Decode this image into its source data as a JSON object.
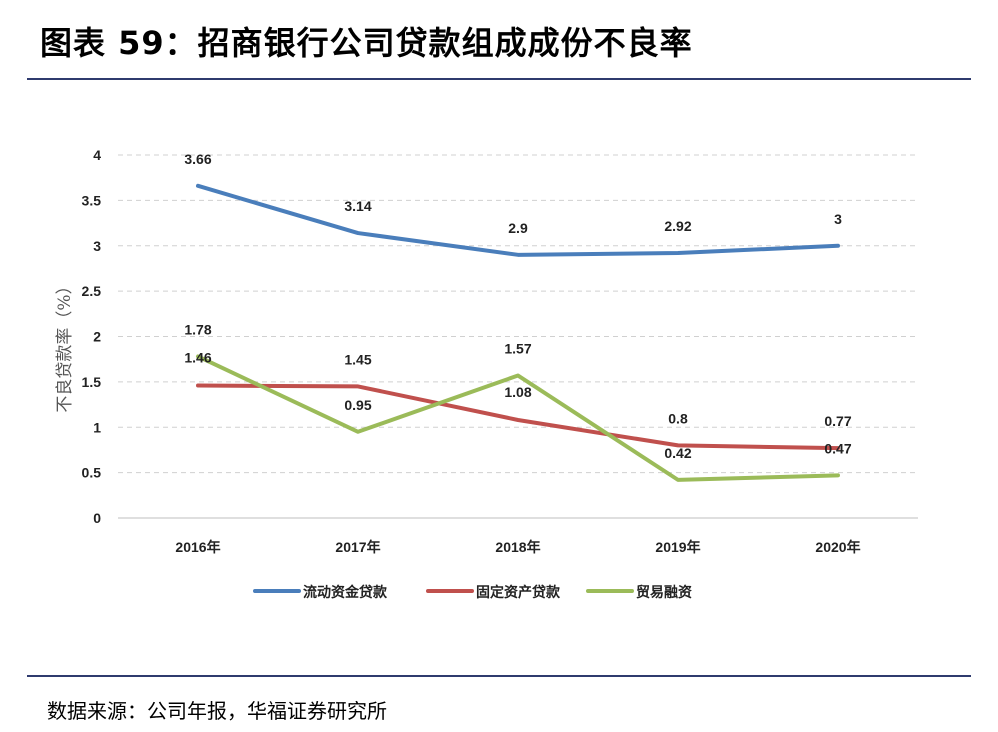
{
  "header": {
    "title": "图表 59：招商银行公司贷款组成成份不良率"
  },
  "footer": {
    "source": "数据来源：公司年报，华福证券研究所"
  },
  "chart_data": {
    "type": "line",
    "ylabel": "不良贷款率（%）",
    "ylim": [
      0,
      4
    ],
    "yticks": [
      "0",
      "0.5",
      "1",
      "1.5",
      "2",
      "2.5",
      "3",
      "3.5",
      "4"
    ],
    "grid": true,
    "legend_position": "bottom",
    "categories": [
      "2016年",
      "2017年",
      "2018年",
      "2019年",
      "2020年"
    ],
    "series": [
      {
        "name": "流动资金贷款",
        "color": "#4a7ebb",
        "values": [
          3.66,
          3.14,
          2.9,
          2.92,
          3
        ],
        "labels": [
          "3.66",
          "3.14",
          "2.9",
          "2.92",
          "3"
        ]
      },
      {
        "name": "固定资产贷款",
        "color": "#c0504d",
        "values": [
          1.46,
          1.45,
          1.08,
          0.8,
          0.77
        ],
        "labels": [
          "1.46",
          "1.45",
          "1.08",
          "0.8",
          "0.77"
        ]
      },
      {
        "name": "贸易融资",
        "color": "#9bbb59",
        "values": [
          1.78,
          0.95,
          1.57,
          0.42,
          0.47
        ],
        "labels": [
          "1.78",
          "0.95",
          "1.57",
          "0.42",
          "0.47"
        ]
      }
    ]
  }
}
